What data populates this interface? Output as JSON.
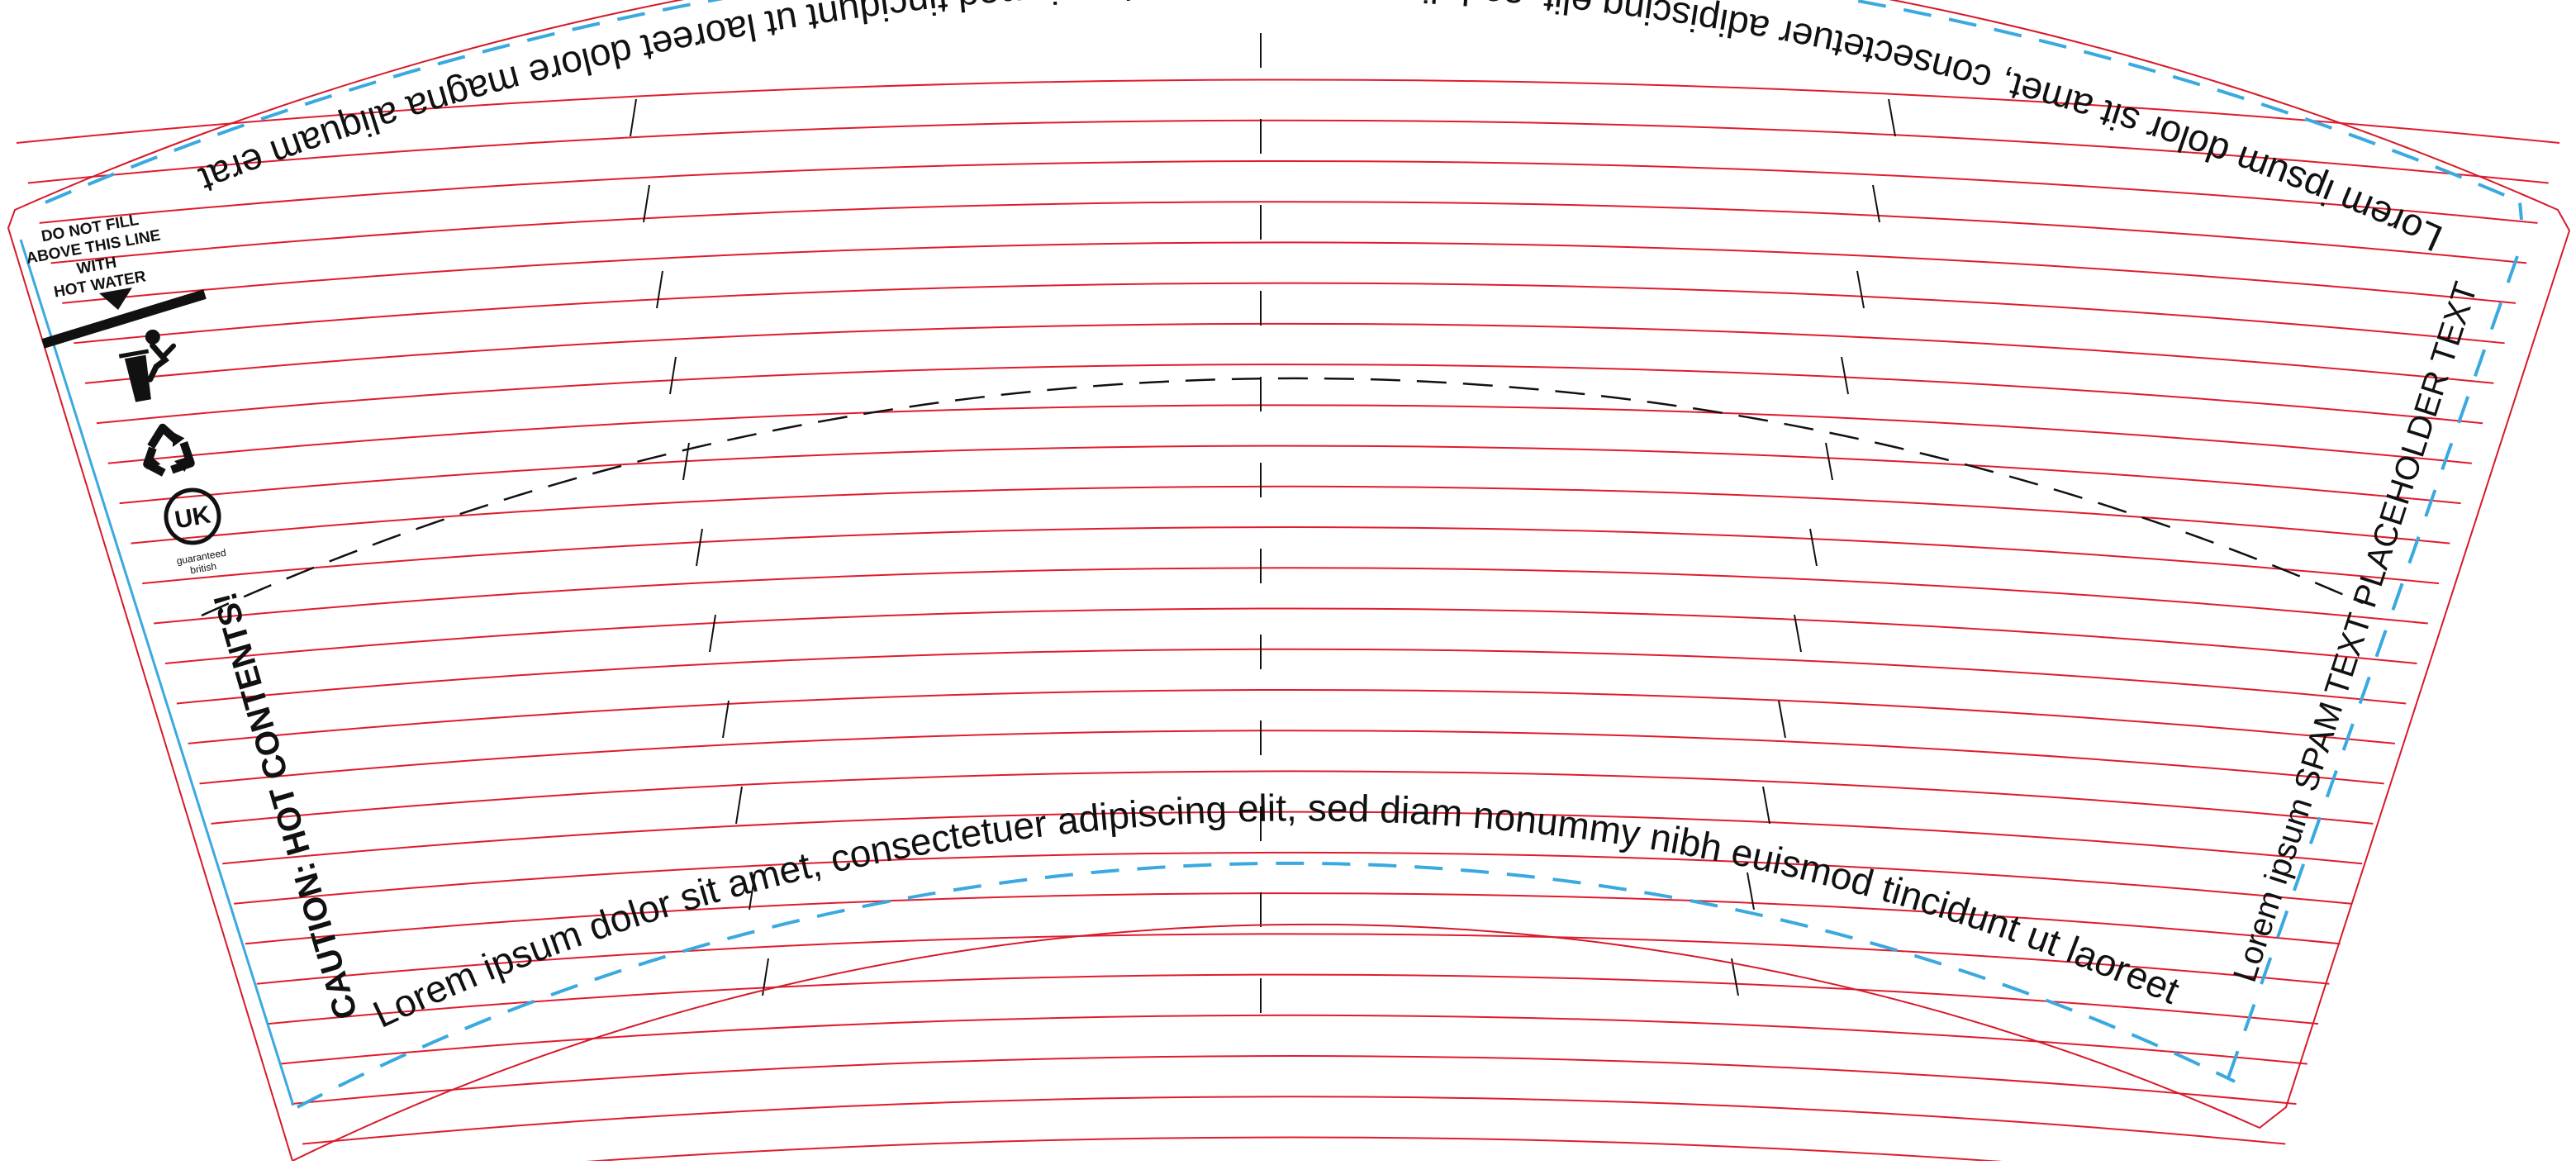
{
  "template": {
    "top_text": "Lorem ipsum dolor sit amet, consectetuer adipiscing elit, sed diam nonummy nibh euismod tincidunt ut laoreet dolore magna aliquam erat",
    "bottom_text": "Lorem ipsum dolor sit amet, consectetuer adipiscing elit, sed diam nonummy nibh euismod tincidunt ut laoreet",
    "side_text": "Lorem ipsum SPAM TEXT PLACEHOLDER TEXT",
    "caution_text": "CAUTION: HOT CONTENTS!",
    "fill_warning": [
      "DO NOT FILL",
      "ABOVE THIS LINE",
      "WITH",
      "HOT WATER"
    ],
    "uk_badge": {
      "label": "UK",
      "caption_1": "guaranteed",
      "caption_2": "british"
    }
  },
  "icons": [
    "fill-line-arrow-icon",
    "bin-person-icon",
    "recycle-icon",
    "uk-badge-icon"
  ],
  "colors": {
    "outline": "#d7192a",
    "guide_lines": "#e01b2d",
    "bleed_dash": "#3aa9e0",
    "fill_line": "#111111",
    "text": "#111111"
  }
}
